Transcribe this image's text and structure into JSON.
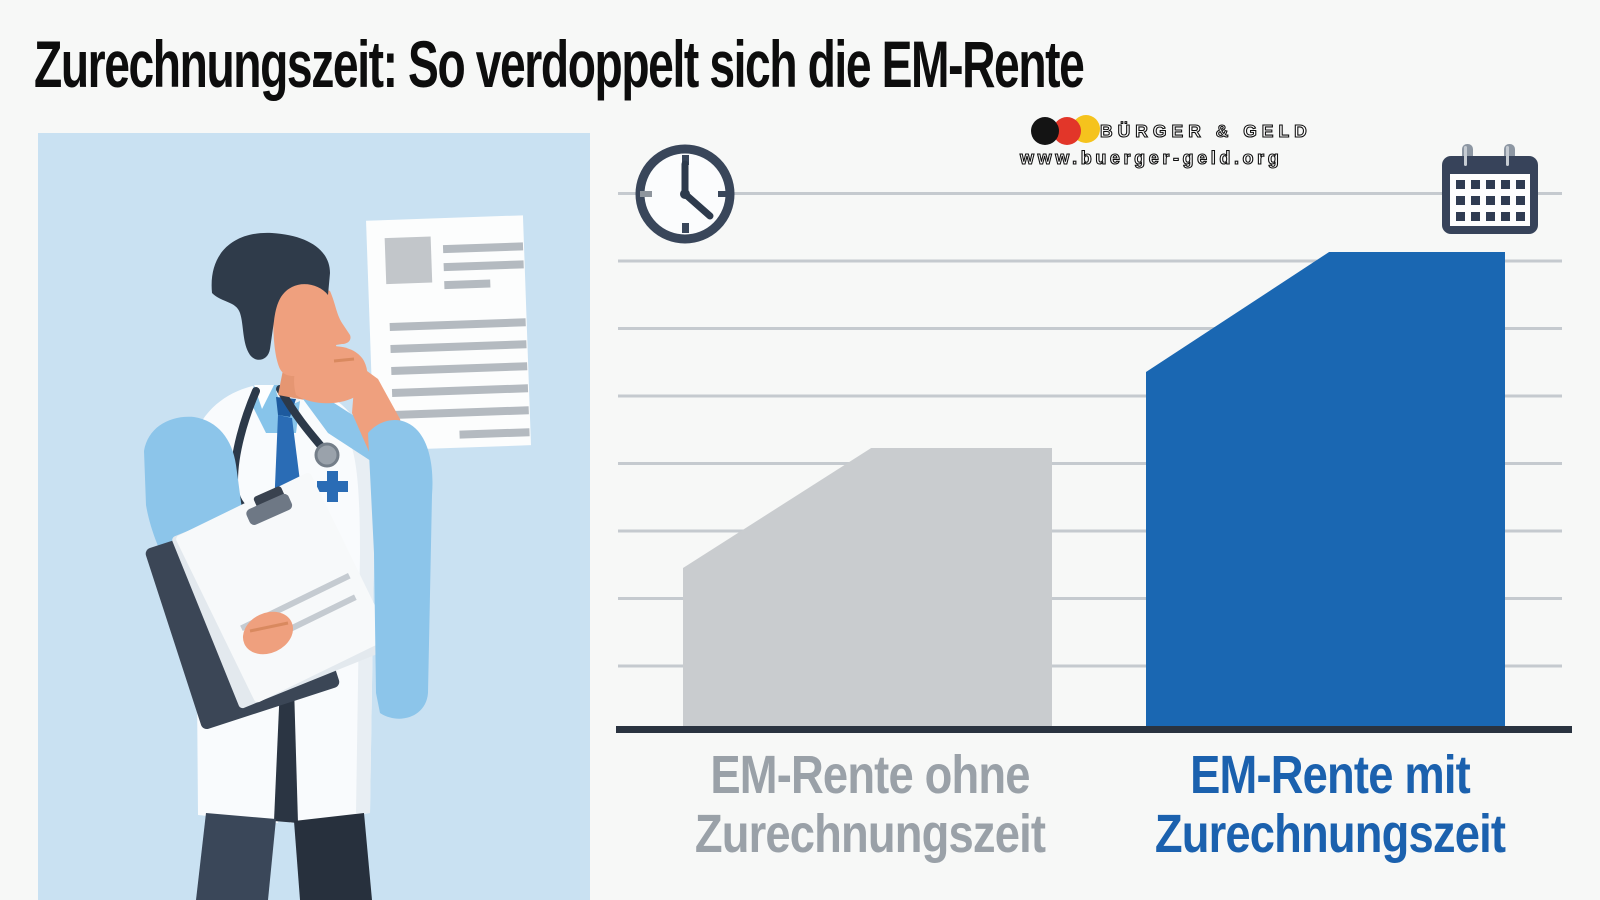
{
  "title": "Zurechnungszeit: So verdoppelt sich die EM-Rente",
  "logo": {
    "brand": "BÜRGER & GELD",
    "url": "www.buerger-geld.org",
    "flag_colors": [
      "#141414",
      "#e23629",
      "#f5c31d"
    ]
  },
  "illustration": {
    "description": "doctor-thinking-illustration",
    "panel_background": "#c9e1f2"
  },
  "chart_data": {
    "type": "bar",
    "title": "Zurechnungszeit: So verdoppelt sich die EM-Rente",
    "categories": [
      "EM-Rente ohne Zurechnungszeit",
      "EM-Rente mit Zurechnungszeit"
    ],
    "values_relative": [
      59,
      100
    ],
    "value_axis": "none (no numeric labels shown; heights relative, right bar ~2x left)",
    "gridline_count": 8,
    "grid": true,
    "legend_position": "none",
    "colors": {
      "bars": [
        "#c9cccf",
        "#1a67b2"
      ],
      "gridline": "#c5cacf",
      "baseline": "#2a3340"
    },
    "labels": {
      "bar1_line1": "EM-Rente ohne",
      "bar1_line2": "Zurechnungszeit",
      "bar2_line1": "EM-Rente mit",
      "bar2_line2": "Zurechnungszeit"
    },
    "decorations": [
      "clock-icon top-left",
      "calendar-icon top-right"
    ]
  }
}
